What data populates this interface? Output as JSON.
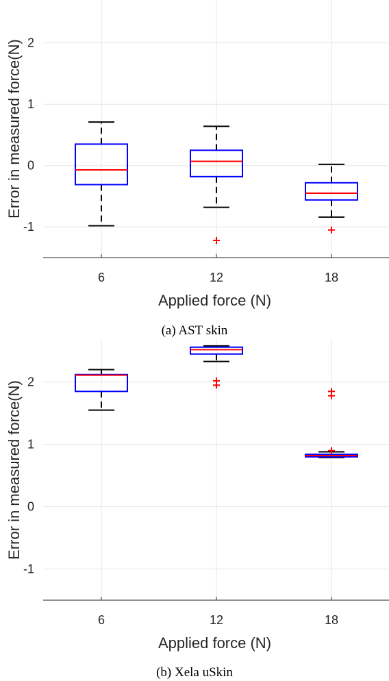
{
  "chart_data": [
    {
      "type": "box",
      "caption": "(a) AST skin",
      "xlabel": "Applied force (N)",
      "ylabel": "Error in measured force(N)",
      "categories": [
        "6",
        "12",
        "18"
      ],
      "yticks": [
        "-1",
        "0",
        "1",
        "2"
      ],
      "ylim": [
        -1.5,
        2.7
      ],
      "grid": true,
      "boxes": [
        {
          "category": "6",
          "whisker_low": -0.98,
          "q1": -0.31,
          "median": -0.07,
          "q3": 0.35,
          "whisker_high": 0.71,
          "outliers": []
        },
        {
          "category": "12",
          "whisker_low": -0.68,
          "q1": -0.18,
          "median": 0.07,
          "q3": 0.25,
          "whisker_high": 0.64,
          "outliers": [
            -1.22
          ]
        },
        {
          "category": "18",
          "whisker_low": -0.84,
          "q1": -0.56,
          "median": -0.45,
          "q3": -0.28,
          "whisker_high": 0.02,
          "outliers": [
            -1.05
          ]
        }
      ]
    },
    {
      "type": "box",
      "caption": "(b) Xela uSkin",
      "xlabel": "Applied force (N)",
      "ylabel": "Error in measured force(N)",
      "categories": [
        "6",
        "12",
        "18"
      ],
      "yticks": [
        "-1",
        "0",
        "1",
        "2"
      ],
      "ylim": [
        -1.5,
        2.7
      ],
      "grid": true,
      "boxes": [
        {
          "category": "6",
          "whisker_low": 1.55,
          "q1": 1.85,
          "median": 2.11,
          "q3": 2.12,
          "whisker_high": 2.2,
          "outliers": []
        },
        {
          "category": "12",
          "whisker_low": 2.33,
          "q1": 2.45,
          "median": 2.52,
          "q3": 2.56,
          "whisker_high": 2.58,
          "outliers": [
            1.95,
            2.02
          ]
        },
        {
          "category": "18",
          "whisker_low": 0.79,
          "q1": 0.8,
          "median": 0.82,
          "q3": 0.84,
          "whisker_high": 0.88,
          "outliers": [
            0.9,
            1.78,
            1.85
          ]
        }
      ]
    }
  ],
  "colors": {
    "box": "#0000ff",
    "median": "#ff0000",
    "outlier": "#ff0000",
    "whisker": "#000000",
    "grid": "#e6e6e6",
    "axis": "#262626"
  }
}
